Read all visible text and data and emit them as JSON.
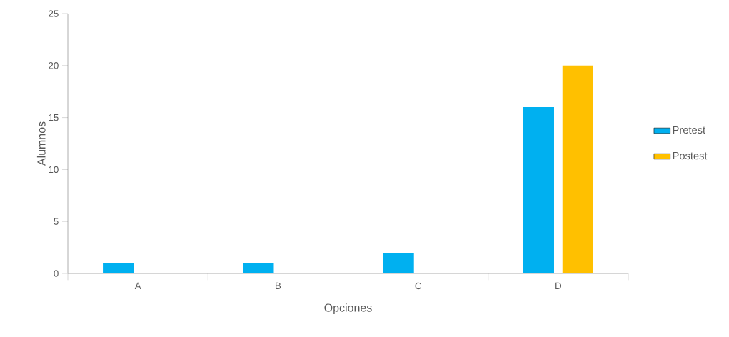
{
  "chart_data": {
    "type": "bar",
    "xlabel": "Opciones",
    "ylabel": "Alumnos",
    "categories": [
      "A",
      "B",
      "C",
      "D"
    ],
    "series": [
      {
        "name": "Pretest",
        "color": "#00b0f0",
        "values": [
          1,
          1,
          2,
          16
        ]
      },
      {
        "name": "Postest",
        "color": "#ffc000",
        "values": [
          0,
          0,
          0,
          20
        ]
      }
    ],
    "ylim": [
      0,
      25
    ],
    "yticks": [
      0,
      5,
      10,
      15,
      20,
      25
    ],
    "grid": false,
    "legend": "right"
  }
}
